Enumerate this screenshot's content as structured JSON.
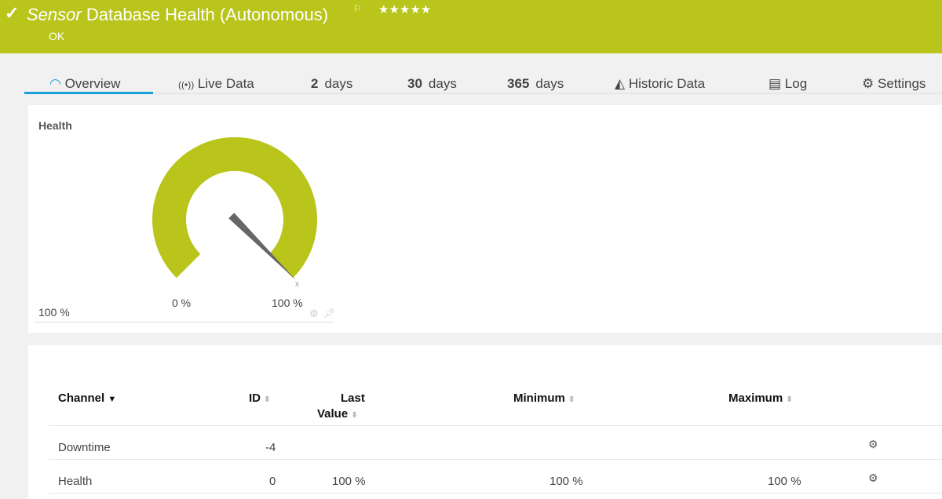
{
  "header": {
    "status_icon": "check-icon",
    "sensor_prefix": "Sensor",
    "title": "Database Health (Autonomous)",
    "flag_icon": "flag-icon",
    "stars": "★★★★★",
    "status": "OK",
    "color": "#b9c51b"
  },
  "tabs": [
    {
      "icon": "gauge-icon",
      "label": "Overview",
      "active": true
    },
    {
      "icon": "live-signal-icon",
      "label": "Live Data"
    },
    {
      "num": "2",
      "label": "days"
    },
    {
      "num": "30",
      "label": "days"
    },
    {
      "num": "365",
      "label": "days"
    },
    {
      "icon": "area-chart-icon",
      "label": "Historic Data"
    },
    {
      "icon": "log-icon",
      "label": "Log"
    },
    {
      "icon": "gear-icon",
      "label": "Settings"
    }
  ],
  "gauge": {
    "title": "Health",
    "value": "100 %",
    "min_label": "0 %",
    "max_label": "100 %",
    "level_percent": 100,
    "accent": "#b9c51b"
  },
  "table": {
    "headers": {
      "channel": "Channel",
      "id": "ID",
      "last1": "Last",
      "last2": "Value",
      "minimum": "Minimum",
      "maximum": "Maximum"
    },
    "rows": [
      {
        "channel": "Downtime",
        "id": "-4",
        "last": "",
        "min": "",
        "max": ""
      },
      {
        "channel": "Health",
        "id": "0",
        "last": "100 %",
        "min": "100 %",
        "max": "100 %"
      }
    ]
  }
}
